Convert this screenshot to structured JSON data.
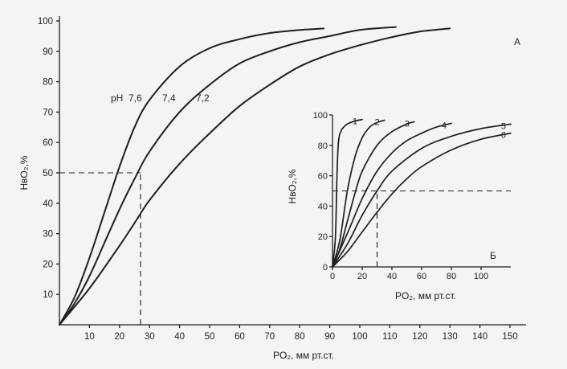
{
  "chart_data": [
    {
      "type": "line",
      "panel_letter": "А",
      "xlabel": "PO₂, мм рт.ст.",
      "ylabel": "HвO₂,%",
      "xlim": [
        0,
        150
      ],
      "ylim": [
        0,
        100
      ],
      "xticks": [
        10,
        20,
        30,
        40,
        50,
        60,
        70,
        80,
        90,
        100,
        110,
        120,
        130,
        140,
        150
      ],
      "yticks": [
        10,
        20,
        30,
        40,
        50,
        60,
        70,
        80,
        90,
        100
      ],
      "grid": false,
      "series_label_prefix": "pH",
      "series": [
        {
          "name": "7,6",
          "x": [
            0,
            5,
            10,
            15,
            20,
            25,
            30,
            40,
            50,
            60,
            70,
            80,
            88
          ],
          "y": [
            0,
            9,
            22,
            37,
            52,
            65,
            74,
            85,
            91,
            94,
            96,
            97,
            97.5
          ]
        },
        {
          "name": "7,4",
          "x": [
            0,
            5,
            10,
            15,
            20,
            25,
            30,
            40,
            50,
            60,
            70,
            80,
            90,
            100,
            112
          ],
          "y": [
            0,
            7,
            16,
            27,
            38,
            48,
            57,
            70,
            79,
            86,
            90,
            93,
            95,
            97,
            98
          ]
        },
        {
          "name": "7,2",
          "x": [
            0,
            10,
            20,
            26,
            30,
            40,
            50,
            60,
            70,
            80,
            90,
            100,
            110,
            120,
            130
          ],
          "y": [
            0,
            12,
            26,
            35,
            41,
            53,
            63,
            72,
            79,
            85,
            89,
            92,
            94.5,
            96.5,
            97.5
          ]
        }
      ],
      "reference_lines": [
        {
          "from": [
            0,
            50
          ],
          "to": [
            27,
            50
          ]
        },
        {
          "from": [
            27,
            0
          ],
          "to": [
            27,
            50
          ]
        }
      ]
    },
    {
      "type": "line",
      "panel_letter": "Б",
      "xlabel": "PO₂, мм рт.ст.",
      "ylabel": "HвO₂,%",
      "xlim": [
        0,
        120
      ],
      "ylim": [
        0,
        100
      ],
      "xticks": [
        0,
        20,
        40,
        60,
        80,
        100
      ],
      "yticks": [
        0,
        20,
        40,
        60,
        80,
        100
      ],
      "grid": false,
      "series": [
        {
          "name": "1",
          "x": [
            0,
            2,
            3,
            4,
            6,
            10,
            15,
            20
          ],
          "y": [
            0,
            20,
            60,
            82,
            90,
            94,
            96,
            97
          ]
        },
        {
          "name": "2",
          "x": [
            0,
            5,
            10,
            15,
            20,
            25,
            30,
            35
          ],
          "y": [
            0,
            18,
            50,
            72,
            85,
            92,
            95,
            96.5
          ]
        },
        {
          "name": "3",
          "x": [
            0,
            5,
            10,
            15,
            20,
            30,
            40,
            50,
            55
          ],
          "y": [
            0,
            12,
            30,
            48,
            63,
            80,
            89,
            94,
            95.5
          ]
        },
        {
          "name": "4",
          "x": [
            0,
            10,
            20,
            30,
            40,
            50,
            60,
            70,
            80
          ],
          "y": [
            0,
            22,
            45,
            63,
            75,
            83,
            88,
            92,
            94.5
          ]
        },
        {
          "name": "5",
          "x": [
            0,
            10,
            20,
            30,
            40,
            60,
            80,
            100,
            120
          ],
          "y": [
            0,
            15,
            34,
            50,
            63,
            78,
            86,
            91,
            94
          ]
        },
        {
          "name": "6",
          "x": [
            0,
            10,
            20,
            30,
            40,
            50,
            60,
            80,
            100,
            120
          ],
          "y": [
            0,
            10,
            23,
            36,
            48,
            58,
            66,
            77,
            84,
            88
          ]
        }
      ],
      "reference_lines": [
        {
          "from": [
            0,
            50
          ],
          "to": [
            120,
            50
          ]
        },
        {
          "from": [
            30,
            0
          ],
          "to": [
            30,
            50
          ]
        }
      ]
    }
  ]
}
